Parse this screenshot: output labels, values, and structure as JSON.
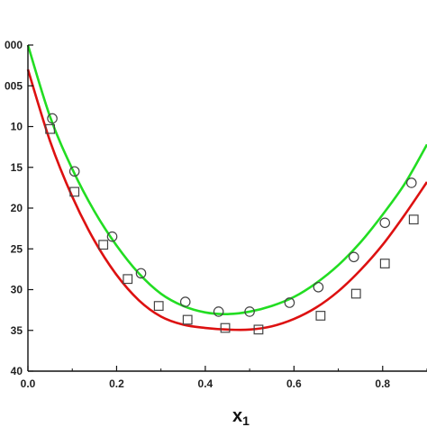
{
  "chart_data": {
    "type": "line",
    "xlabel": "x",
    "xlabel_subscript": "1",
    "ylabel": "",
    "xlim": [
      0.0,
      0.9
    ],
    "ylim": [
      -0.04,
      0.0
    ],
    "x_ticks": [
      0.0,
      0.2,
      0.4,
      0.6,
      0.8
    ],
    "x_tick_labels": [
      "0.0",
      "0.2",
      "0.4",
      "0.6",
      "0.8"
    ],
    "y_ticks": [
      0.0,
      -0.005,
      -0.01,
      -0.015,
      -0.02,
      -0.025,
      -0.03,
      -0.035,
      -0.04
    ],
    "y_tick_labels": [
      "000",
      "005",
      "10",
      "15",
      "20",
      "25",
      "30",
      "35",
      "40"
    ],
    "grid": false,
    "colors": {
      "green_curve": "#22dd22",
      "red_curve": "#dd1111",
      "marker": "#444444"
    },
    "series": [
      {
        "style": "line",
        "color": "#22dd22",
        "points": [
          [
            0.0,
            0.0
          ],
          [
            0.05,
            -0.0088
          ],
          [
            0.1,
            -0.0152
          ],
          [
            0.15,
            -0.0204
          ],
          [
            0.2,
            -0.0246
          ],
          [
            0.25,
            -0.028
          ],
          [
            0.3,
            -0.0305
          ],
          [
            0.35,
            -0.032
          ],
          [
            0.4,
            -0.0328
          ],
          [
            0.45,
            -0.033
          ],
          [
            0.5,
            -0.0327
          ],
          [
            0.55,
            -0.032
          ],
          [
            0.6,
            -0.0309
          ],
          [
            0.65,
            -0.0292
          ],
          [
            0.7,
            -0.027
          ],
          [
            0.75,
            -0.0242
          ],
          [
            0.8,
            -0.0208
          ],
          [
            0.85,
            -0.017
          ],
          [
            0.9,
            -0.0122
          ]
        ]
      },
      {
        "style": "line",
        "color": "#dd1111",
        "points": [
          [
            0.0,
            -0.003
          ],
          [
            0.05,
            -0.0118
          ],
          [
            0.1,
            -0.0186
          ],
          [
            0.15,
            -0.024
          ],
          [
            0.2,
            -0.0282
          ],
          [
            0.25,
            -0.0313
          ],
          [
            0.3,
            -0.0333
          ],
          [
            0.35,
            -0.0343
          ],
          [
            0.4,
            -0.0347
          ],
          [
            0.45,
            -0.0349
          ],
          [
            0.5,
            -0.0349
          ],
          [
            0.55,
            -0.0345
          ],
          [
            0.6,
            -0.0336
          ],
          [
            0.65,
            -0.0322
          ],
          [
            0.7,
            -0.0302
          ],
          [
            0.75,
            -0.0276
          ],
          [
            0.8,
            -0.0245
          ],
          [
            0.85,
            -0.0208
          ],
          [
            0.9,
            -0.0168
          ]
        ]
      },
      {
        "style": "markers-circle",
        "color": "#444444",
        "points": [
          [
            0.055,
            -0.009
          ],
          [
            0.105,
            -0.0155
          ],
          [
            0.19,
            -0.0235
          ],
          [
            0.255,
            -0.028
          ],
          [
            0.355,
            -0.0315
          ],
          [
            0.43,
            -0.0327
          ],
          [
            0.5,
            -0.0327
          ],
          [
            0.59,
            -0.0316
          ],
          [
            0.655,
            -0.0297
          ],
          [
            0.735,
            -0.026
          ],
          [
            0.805,
            -0.0218
          ],
          [
            0.865,
            -0.0169
          ]
        ]
      },
      {
        "style": "markers-square",
        "color": "#444444",
        "points": [
          [
            0.05,
            -0.0103
          ],
          [
            0.105,
            -0.018
          ],
          [
            0.17,
            -0.0245
          ],
          [
            0.225,
            -0.0287
          ],
          [
            0.295,
            -0.032
          ],
          [
            0.36,
            -0.0337
          ],
          [
            0.445,
            -0.0347
          ],
          [
            0.52,
            -0.0349
          ],
          [
            0.66,
            -0.0332
          ],
          [
            0.74,
            -0.0305
          ],
          [
            0.805,
            -0.0268
          ],
          [
            0.87,
            -0.0214
          ]
        ]
      }
    ]
  }
}
